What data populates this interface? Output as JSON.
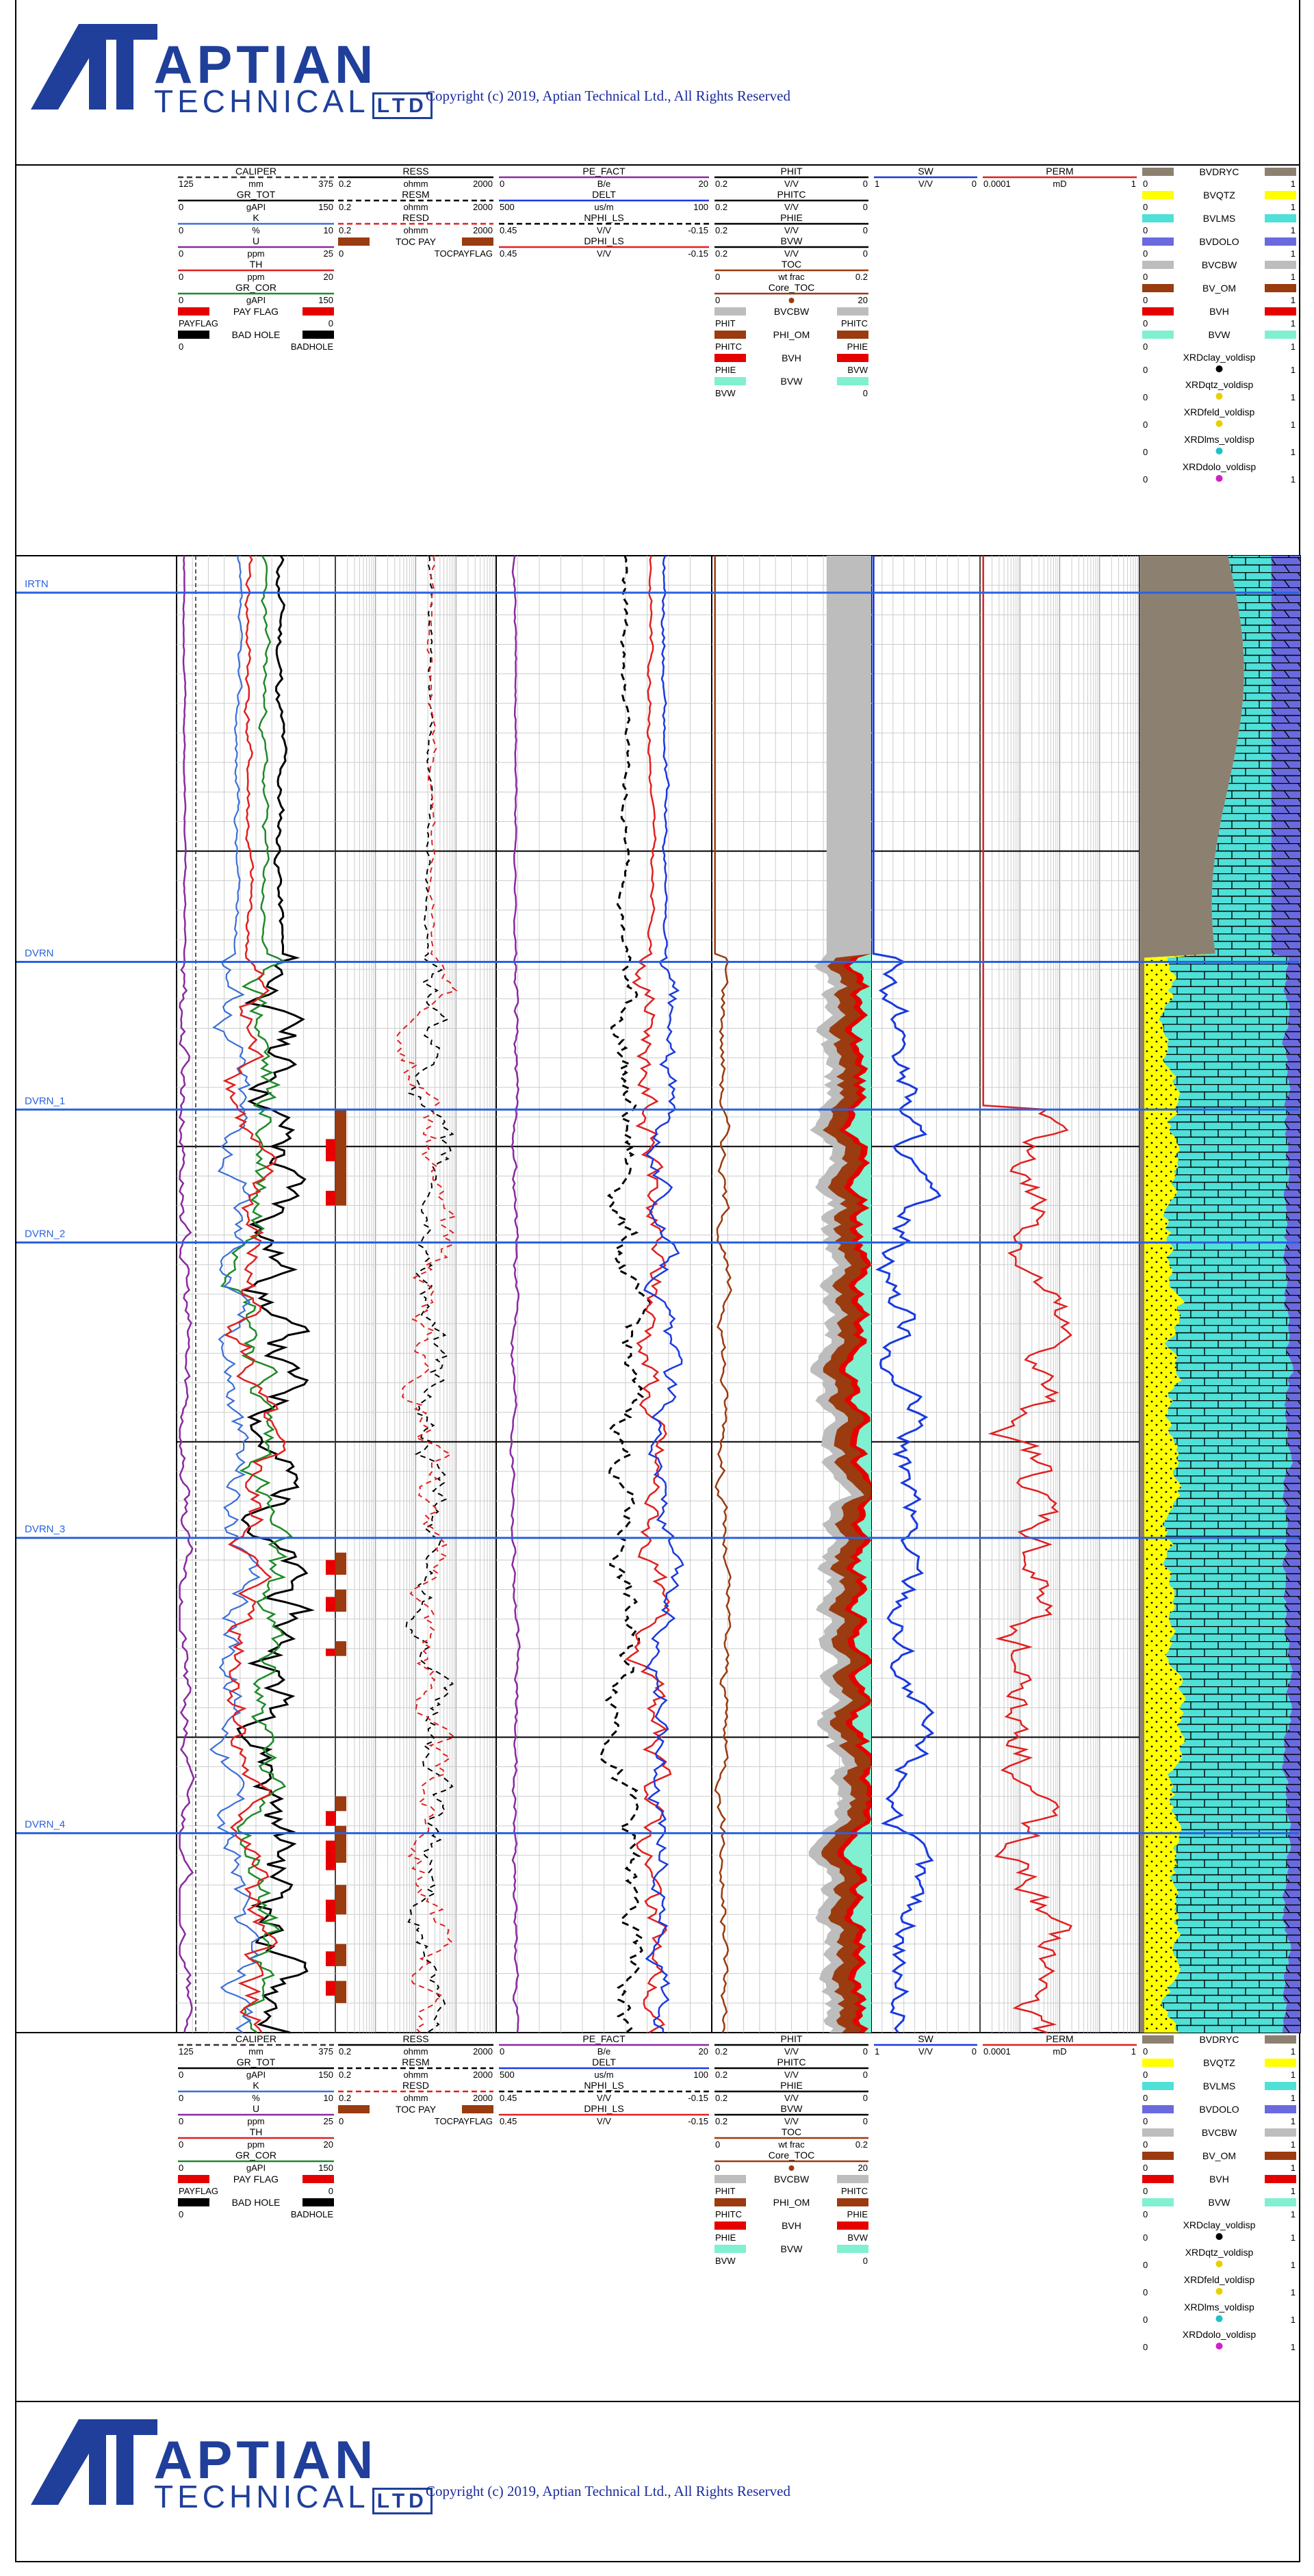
{
  "header": {
    "brand": "APTIAN",
    "brand_sub": "TECHNICAL",
    "brand_ltd": "LTD",
    "copyright": "Copyright (c) 2019, Aptian Technical Ltd., All Rights Reserved"
  },
  "footer": {
    "brand": "APTIAN",
    "brand_sub": "TECHNICAL",
    "brand_ltd": "LTD",
    "copyright": "Copyright (c) 2019, Aptian Technical Ltd., All Rights Reserved"
  },
  "colors": {
    "brand_blue": "#1f3f9a",
    "marker_blue": "#2a62e0",
    "caliper": "#333333",
    "gr_tot": "#000000",
    "k": "#3a6fd8",
    "u": "#8a2aa0",
    "th": "#e02020",
    "gr_cor": "#1f8a2a",
    "pay": "#e60000",
    "toc_pay": "#9a3b10",
    "bvcbw": "#bdbdbd",
    "bvw": "#80f0d0",
    "quartz": "#ffff00",
    "limestone": "#4fe0d8",
    "dolomite": "#6a6ae0",
    "drycl": "#8c8070"
  },
  "chart_data": {
    "type": "well-log",
    "depth_markers": [
      "IRTN",
      "DVRN",
      "DVRN_1",
      "DVRN_2",
      "DVRN_3",
      "DVRN_4"
    ],
    "marker_positions": [
      0.025,
      0.275,
      0.375,
      0.465,
      0.665,
      0.865
    ],
    "toc_pay_zones": [
      [
        0.375,
        0.44
      ],
      [
        0.675,
        0.69
      ],
      [
        0.7,
        0.715
      ],
      [
        0.735,
        0.745
      ],
      [
        0.84,
        0.85
      ],
      [
        0.86,
        0.885
      ],
      [
        0.9,
        0.92
      ],
      [
        0.94,
        0.955
      ],
      [
        0.965,
        0.98
      ]
    ],
    "payflag_zones": [
      [
        0.395,
        0.41
      ],
      [
        0.43,
        0.44
      ],
      [
        0.68,
        0.69
      ],
      [
        0.705,
        0.715
      ],
      [
        0.74,
        0.745
      ],
      [
        0.85,
        0.86
      ],
      [
        0.87,
        0.89
      ],
      [
        0.91,
        0.925
      ],
      [
        0.945,
        0.955
      ],
      [
        0.965,
        0.975
      ]
    ],
    "tracks": [
      {
        "id": "gr",
        "curves": [
          {
            "name": "CALIPER",
            "unit": "mm",
            "min": "125",
            "max": "375",
            "color": "#333333",
            "style": "dashed"
          },
          {
            "name": "GR_TOT",
            "unit": "gAPI",
            "min": "0",
            "max": "150",
            "color": "#000000",
            "style": "solid"
          },
          {
            "name": "K",
            "unit": "%",
            "min": "0",
            "max": "10",
            "color": "#3a6fd8",
            "style": "solid"
          },
          {
            "name": "U",
            "unit": "ppm",
            "min": "0",
            "max": "25",
            "color": "#8a2aa0",
            "style": "solid"
          },
          {
            "name": "TH",
            "unit": "ppm",
            "min": "0",
            "max": "20",
            "color": "#e02020",
            "style": "solid"
          },
          {
            "name": "GR_COR",
            "unit": "gAPI",
            "min": "0",
            "max": "150",
            "color": "#1f8a2a",
            "style": "solid"
          }
        ],
        "fills": [
          {
            "name": "PAY FLAG",
            "left": "PAYFLAG",
            "right": "0",
            "color": "#e60000"
          },
          {
            "name": "BAD HOLE",
            "left": "0",
            "right": "BADHOLE",
            "color": "#000000"
          }
        ]
      },
      {
        "id": "res",
        "curves": [
          {
            "name": "RESS",
            "unit": "ohmm",
            "min": "0.2",
            "max": "2000",
            "color": "#000000",
            "style": "solid"
          },
          {
            "name": "RESM",
            "unit": "ohmm",
            "min": "0.2",
            "max": "2000",
            "color": "#000000",
            "style": "dashed"
          },
          {
            "name": "RESD",
            "unit": "ohmm",
            "min": "0.2",
            "max": "2000",
            "color": "#e02020",
            "style": "dashed"
          }
        ],
        "fills": [
          {
            "name": "TOC PAY",
            "left": "0",
            "right": "TOCPAYFLAG",
            "color": "#9a3b10"
          }
        ]
      },
      {
        "id": "por",
        "curves": [
          {
            "name": "PE_FACT",
            "unit": "B/e",
            "min": "0",
            "max": "20",
            "color": "#8a2aa0",
            "style": "solid"
          },
          {
            "name": "DELT",
            "unit": "us/m",
            "min": "500",
            "max": "100",
            "color": "#1a3adf",
            "style": "solid"
          },
          {
            "name": "NPHI_LS",
            "unit": "V/V",
            "min": "0.45",
            "max": "-0.15",
            "color": "#000000",
            "style": "dashed"
          },
          {
            "name": "DPHI_LS",
            "unit": "V/V",
            "min": "0.45",
            "max": "-0.15",
            "color": "#e02020",
            "style": "solid"
          }
        ],
        "fills": []
      },
      {
        "id": "phi",
        "curves": [
          {
            "name": "PHIT",
            "unit": "V/V",
            "min": "0.2",
            "max": "0",
            "color": "#000000",
            "style": "solid"
          },
          {
            "name": "PHITC",
            "unit": "V/V",
            "min": "0.2",
            "max": "0",
            "color": "#000000",
            "style": "solid"
          },
          {
            "name": "PHIE",
            "unit": "V/V",
            "min": "0.2",
            "max": "0",
            "color": "#000000",
            "style": "solid"
          },
          {
            "name": "BVW",
            "unit": "V/V",
            "min": "0.2",
            "max": "0",
            "color": "#000000",
            "style": "solid"
          },
          {
            "name": "TOC",
            "unit": "wt frac",
            "min": "0",
            "max": "0.2",
            "color": "#9a3b10",
            "style": "solid"
          },
          {
            "name": "Core_TOC",
            "unit": "",
            "min": "0",
            "max": "20",
            "color": "#9a3b10",
            "style": "dot"
          }
        ],
        "fills": [
          {
            "name": "BVCBW",
            "left": "PHIT",
            "right": "PHITC",
            "color": "#bdbdbd"
          },
          {
            "name": "PHI_OM",
            "left": "PHITC",
            "right": "PHIE",
            "color": "#9a3b10"
          },
          {
            "name": "BVH",
            "left": "PHIE",
            "right": "BVW",
            "color": "#e60000"
          },
          {
            "name": "BVW",
            "left": "BVW",
            "right": "0",
            "color": "#80f0d0"
          }
        ]
      },
      {
        "id": "sw",
        "curves": [
          {
            "name": "SW",
            "unit": "V/V",
            "min": "1",
            "max": "0",
            "color": "#1a3adf",
            "style": "solid"
          }
        ],
        "fills": []
      },
      {
        "id": "perm",
        "curves": [
          {
            "name": "PERM",
            "unit": "mD",
            "min": "0.0001",
            "max": "1",
            "color": "#e02020",
            "style": "solid"
          }
        ],
        "fills": []
      },
      {
        "id": "lith",
        "curves": [],
        "fills": [
          {
            "name": "BVDRYC",
            "left": "0",
            "right": "1",
            "color": "#8c8070"
          },
          {
            "name": "BVQTZ",
            "left": "0",
            "right": "1",
            "color": "#ffff00"
          },
          {
            "name": "BVLMS",
            "left": "0",
            "right": "1",
            "color": "#4fe0d8"
          },
          {
            "name": "BVDOLO",
            "left": "0",
            "right": "1",
            "color": "#6a6ae0"
          },
          {
            "name": "BVCBW",
            "left": "0",
            "right": "1",
            "color": "#bdbdbd"
          },
          {
            "name": "BV_OM",
            "left": "0",
            "right": "1",
            "color": "#9a3b10"
          },
          {
            "name": "BVH",
            "left": "0",
            "right": "1",
            "color": "#e60000"
          },
          {
            "name": "BVW",
            "left": "0",
            "right": "1",
            "color": "#80f0d0"
          }
        ],
        "points": [
          {
            "name": "XRDclay_voldisp",
            "min": "0",
            "max": "1",
            "color": "#000000"
          },
          {
            "name": "XRDqtz_voldisp",
            "min": "0",
            "max": "1",
            "color": "#e8d000"
          },
          {
            "name": "XRDfeld_voldisp",
            "min": "0",
            "max": "1",
            "color": "#e8d000"
          },
          {
            "name": "XRDlms_voldisp",
            "min": "0",
            "max": "1",
            "color": "#20c0c8"
          },
          {
            "name": "XRDdolo_voldisp",
            "min": "0",
            "max": "1",
            "color": "#d020c8"
          }
        ]
      }
    ]
  }
}
